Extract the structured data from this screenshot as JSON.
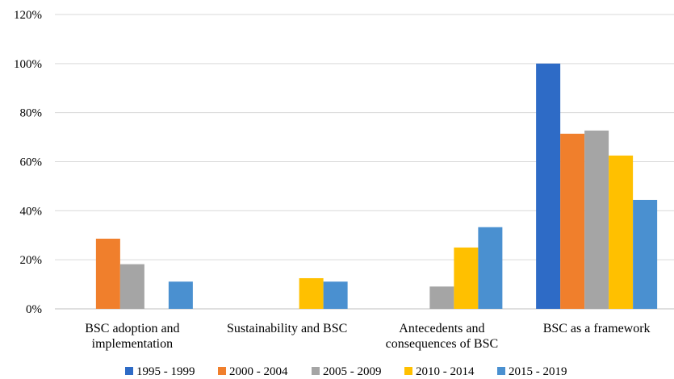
{
  "chart_data": {
    "type": "bar",
    "title": "",
    "xlabel": "",
    "ylabel": "",
    "ylim": [
      0,
      120
    ],
    "y_ticks": [
      "0%",
      "20%",
      "40%",
      "60%",
      "80%",
      "100%",
      "120%"
    ],
    "categories": [
      [
        "BSC adoption and",
        "implementation"
      ],
      [
        "Sustainability and BSC"
      ],
      [
        "Antecedents and",
        "consequences of BSC"
      ],
      [
        "BSC as a framework"
      ]
    ],
    "series": [
      {
        "name": "1995 - 1999",
        "color": "#2E6BC6",
        "values": [
          0,
          0,
          0,
          100
        ]
      },
      {
        "name": "2000 - 2004",
        "color": "#F07F2C",
        "values": [
          28.6,
          0,
          0,
          71.4
        ]
      },
      {
        "name": "2005 - 2009",
        "color": "#A5A5A5",
        "values": [
          18.2,
          0,
          9.1,
          72.7
        ]
      },
      {
        "name": "2010 - 2014",
        "color": "#FFC000",
        "values": [
          0,
          12.5,
          25,
          62.5
        ]
      },
      {
        "name": "2015 - 2019",
        "color": "#4A90D0",
        "values": [
          11.1,
          11.1,
          33.3,
          44.4
        ]
      }
    ],
    "grid": true,
    "legend_position": "bottom"
  }
}
